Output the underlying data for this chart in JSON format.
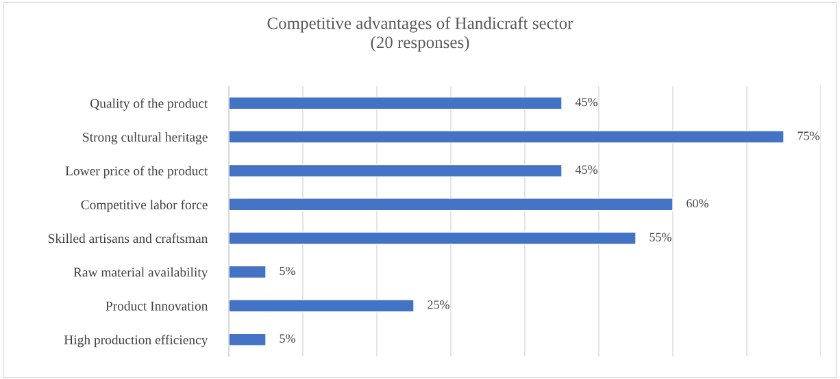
{
  "chart_data": {
    "type": "bar",
    "orientation": "horizontal",
    "title": "Competitive advantages of Handicraft sector\n(20 responses)",
    "categories": [
      "Quality of the product",
      "Strong cultural heritage",
      "Lower price of the product",
      "Competitive labor force",
      "Skilled artisans and craftsman",
      "Raw material availability",
      "Product Innovation",
      "High production efficiency"
    ],
    "values": [
      45,
      75,
      45,
      60,
      55,
      5,
      25,
      5
    ],
    "value_labels": [
      "45%",
      "75%",
      "45%",
      "60%",
      "55%",
      "5%",
      "25%",
      "5%"
    ],
    "color": "#4472c4",
    "xlim": [
      0,
      80
    ],
    "xticks": [
      {
        "value": 0,
        "label": null
      },
      {
        "value": 10,
        "label": null
      },
      {
        "value": 20,
        "label": null
      },
      {
        "value": 30,
        "label": null
      },
      {
        "value": 40,
        "label": null
      },
      {
        "value": 50,
        "label": null
      },
      {
        "value": 60,
        "label": null
      },
      {
        "value": 70,
        "label": null
      },
      {
        "value": 80,
        "label": null
      }
    ],
    "tick_labels": "y",
    "grid": "x",
    "legend": false
  }
}
